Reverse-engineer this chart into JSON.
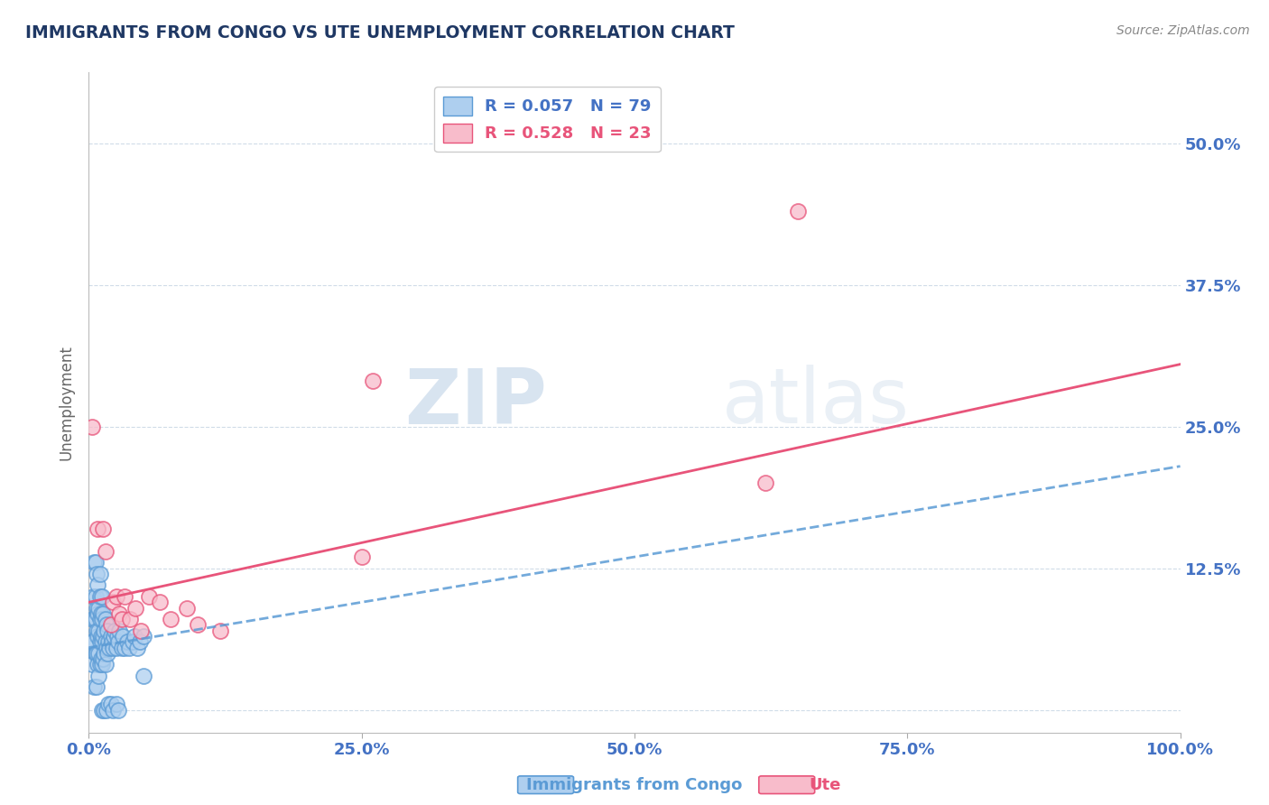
{
  "title": "IMMIGRANTS FROM CONGO VS UTE UNEMPLOYMENT CORRELATION CHART",
  "source": "Source: ZipAtlas.com",
  "ylabel": "Unemployment",
  "xlim": [
    0.0,
    1.0
  ],
  "ylim": [
    -0.02,
    0.5625
  ],
  "yticks": [
    0.0,
    0.125,
    0.25,
    0.375,
    0.5
  ],
  "ytick_labels": [
    "",
    "12.5%",
    "25.0%",
    "37.5%",
    "50.0%"
  ],
  "xticks": [
    0.0,
    0.25,
    0.5,
    0.75,
    1.0
  ],
  "xtick_labels": [
    "0.0%",
    "25.0%",
    "50.0%",
    "75.0%",
    "100.0%"
  ],
  "series1_label": "Immigrants from Congo",
  "series1_R": 0.057,
  "series1_N": 79,
  "series1_color": "#aecfef",
  "series1_edge_color": "#5b9bd5",
  "series2_label": "Ute",
  "series2_R": 0.528,
  "series2_N": 23,
  "series2_color": "#f8bccb",
  "series2_edge_color": "#e8547a",
  "watermark_zip": "ZIP",
  "watermark_atlas": "atlas",
  "title_color": "#1f3864",
  "axis_label_color": "#4472c4",
  "grid_color": "#d0dce8",
  "series1_line_color": "#5b9bd5",
  "series2_line_color": "#e8547a",
  "series1_x": [
    0.002,
    0.003,
    0.003,
    0.004,
    0.004,
    0.005,
    0.005,
    0.005,
    0.006,
    0.006,
    0.006,
    0.006,
    0.007,
    0.007,
    0.007,
    0.007,
    0.007,
    0.008,
    0.008,
    0.008,
    0.008,
    0.009,
    0.009,
    0.009,
    0.009,
    0.01,
    0.01,
    0.01,
    0.01,
    0.01,
    0.011,
    0.011,
    0.011,
    0.012,
    0.012,
    0.012,
    0.012,
    0.013,
    0.013,
    0.013,
    0.014,
    0.014,
    0.015,
    0.015,
    0.015,
    0.016,
    0.016,
    0.017,
    0.017,
    0.018,
    0.019,
    0.02,
    0.021,
    0.022,
    0.023,
    0.024,
    0.025,
    0.026,
    0.027,
    0.028,
    0.03,
    0.031,
    0.033,
    0.035,
    0.037,
    0.04,
    0.042,
    0.044,
    0.047,
    0.05,
    0.012,
    0.014,
    0.016,
    0.018,
    0.02,
    0.022,
    0.025,
    0.027,
    0.05
  ],
  "series1_y": [
    0.06,
    0.04,
    0.08,
    0.1,
    0.06,
    0.02,
    0.08,
    0.13,
    0.05,
    0.08,
    0.1,
    0.13,
    0.02,
    0.05,
    0.07,
    0.09,
    0.12,
    0.04,
    0.065,
    0.085,
    0.11,
    0.03,
    0.05,
    0.07,
    0.09,
    0.04,
    0.06,
    0.08,
    0.1,
    0.12,
    0.045,
    0.065,
    0.085,
    0.04,
    0.06,
    0.08,
    0.1,
    0.045,
    0.065,
    0.085,
    0.05,
    0.07,
    0.04,
    0.06,
    0.08,
    0.055,
    0.075,
    0.05,
    0.07,
    0.06,
    0.055,
    0.065,
    0.06,
    0.055,
    0.065,
    0.07,
    0.055,
    0.065,
    0.06,
    0.07,
    0.055,
    0.065,
    0.055,
    0.06,
    0.055,
    0.06,
    0.065,
    0.055,
    0.06,
    0.065,
    0.0,
    0.0,
    0.0,
    0.005,
    0.005,
    0.0,
    0.005,
    0.0,
    0.03
  ],
  "series2_x": [
    0.003,
    0.008,
    0.013,
    0.015,
    0.02,
    0.022,
    0.025,
    0.028,
    0.03,
    0.033,
    0.038,
    0.043,
    0.048,
    0.055,
    0.065,
    0.075,
    0.09,
    0.1,
    0.12,
    0.25,
    0.26,
    0.62,
    0.65
  ],
  "series2_y": [
    0.25,
    0.16,
    0.16,
    0.14,
    0.075,
    0.095,
    0.1,
    0.085,
    0.08,
    0.1,
    0.08,
    0.09,
    0.07,
    0.1,
    0.095,
    0.08,
    0.09,
    0.075,
    0.07,
    0.135,
    0.29,
    0.2,
    0.44
  ],
  "trend1_x0": 0.0,
  "trend1_y0": 0.055,
  "trend1_x1": 1.0,
  "trend1_y1": 0.215,
  "trend2_x0": 0.0,
  "trend2_y0": 0.095,
  "trend2_x1": 1.0,
  "trend2_y1": 0.305
}
